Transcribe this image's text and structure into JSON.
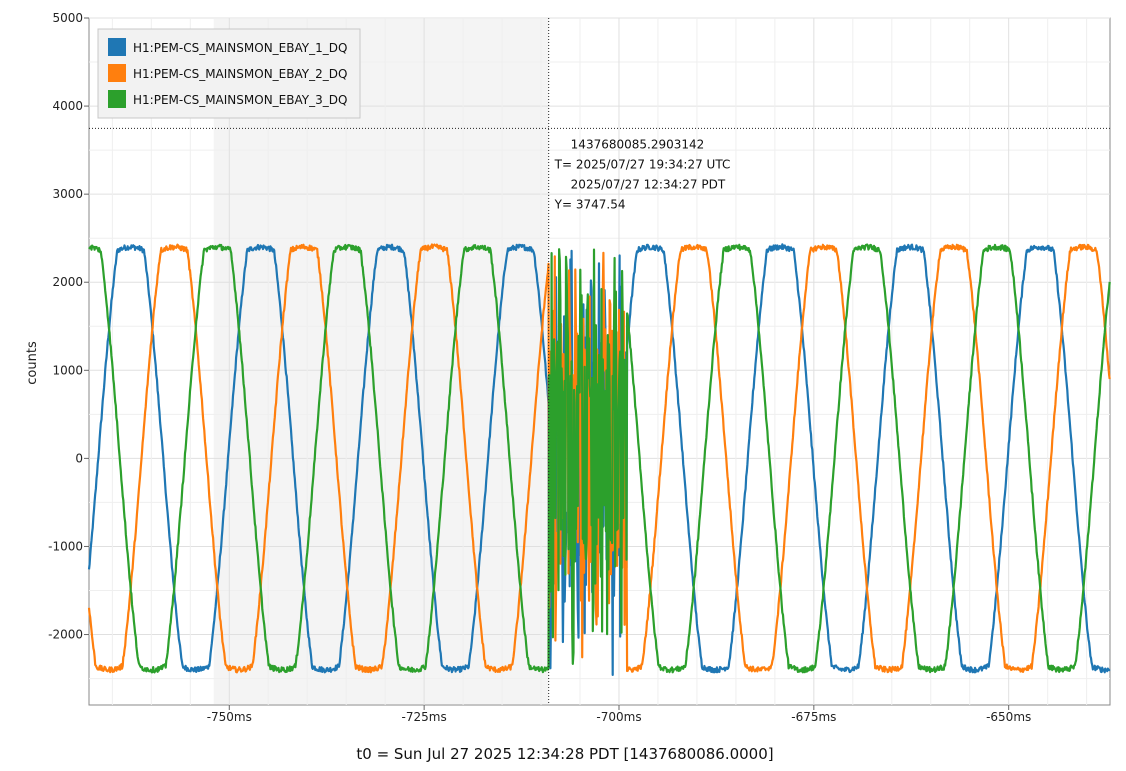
{
  "chart_data": {
    "type": "line",
    "title": "",
    "xlabel": "t0 = Sun Jul 27 2025 12:34:28 PDT [1437680086.0000]",
    "ylabel": "counts",
    "x_unit": "ms",
    "xlim": [
      -768,
      -637
    ],
    "ylim": [
      -2800,
      5000
    ],
    "x_ticks": [
      -750,
      -725,
      -700,
      -675,
      -650
    ],
    "x_tick_labels": [
      "-750ms",
      "-725ms",
      "-700ms",
      "-675ms",
      "-650ms"
    ],
    "y_ticks": [
      -2000,
      -1000,
      0,
      1000,
      2000,
      3000,
      4000,
      5000
    ],
    "y_tick_labels": [
      "-2000",
      "-1000",
      "0",
      "1000",
      "2000",
      "3000",
      "4000",
      "5000"
    ],
    "grid": true,
    "legend_position": "top-left",
    "series_period_ms": 16.67,
    "series": [
      {
        "name": "H1:PEM-CS_MAINSMON_EBAY_1_DQ",
        "color": "#1f77b4",
        "amplitude": 2400,
        "phase_deg": 0
      },
      {
        "name": "H1:PEM-CS_MAINSMON_EBAY_2_DQ",
        "color": "#ff7f0e",
        "amplitude": 2400,
        "phase_deg": -120
      },
      {
        "name": "H1:PEM-CS_MAINSMON_EBAY_3_DQ",
        "color": "#2ca02c",
        "amplitude": 2400,
        "phase_deg": 120
      }
    ],
    "disturbance_window_ms": [
      -709,
      -699
    ],
    "cursor": {
      "x_ms": -709.02,
      "y": 3747.54,
      "lines": [
        "1437680085.2903142",
        "T= 2025/07/27 19:34:27 UTC",
        "2025/07/27 12:34:27 PDT",
        "Y= 3747.54"
      ]
    }
  }
}
